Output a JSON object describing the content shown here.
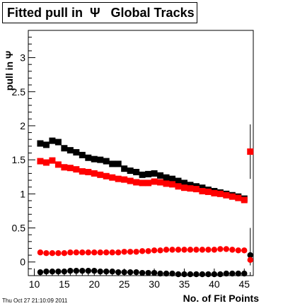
{
  "title": "Fitted pull in  Ψ   Global Tracks",
  "timestamp": "Thu Oct 27 21:10:09 2011",
  "chart_data": {
    "type": "scatter",
    "xlabel": "No. of Fit Points",
    "ylabel": "pull in Ψ",
    "xlim": [
      9,
      46.5
    ],
    "ylim": [
      -0.2,
      3.4
    ],
    "x_ticks": [
      "10",
      "15",
      "20",
      "25",
      "30",
      "35",
      "40",
      "45"
    ],
    "y_ticks": [
      "0",
      "0.5",
      "1",
      "1.5",
      "2",
      "2.5",
      "3"
    ],
    "grid": false,
    "series": [
      {
        "marker": "square",
        "color": "#000000",
        "x": [
          11,
          12,
          13,
          14,
          15,
          16,
          17,
          18,
          19,
          20,
          21,
          22,
          23,
          24,
          25,
          26,
          27,
          28,
          29,
          30,
          31,
          32,
          33,
          34,
          35,
          36,
          37,
          38,
          39,
          40,
          41,
          42,
          43,
          44,
          45
        ],
        "y": [
          1.74,
          1.72,
          1.78,
          1.76,
          1.67,
          1.64,
          1.61,
          1.57,
          1.53,
          1.51,
          1.5,
          1.48,
          1.44,
          1.44,
          1.37,
          1.34,
          1.32,
          1.28,
          1.29,
          1.3,
          1.27,
          1.24,
          1.22,
          1.19,
          1.16,
          1.13,
          1.11,
          1.09,
          1.06,
          1.04,
          1.02,
          1.0,
          0.98,
          0.96,
          0.93
        ]
      },
      {
        "marker": "square",
        "color": "#ff0000",
        "x": [
          11,
          12,
          13,
          14,
          15,
          16,
          17,
          18,
          19,
          20,
          21,
          22,
          23,
          24,
          25,
          26,
          27,
          28,
          29,
          30,
          31,
          32,
          33,
          34,
          35,
          36,
          37,
          38,
          39,
          40,
          41,
          42,
          43,
          44,
          45
        ],
        "y": [
          1.48,
          1.46,
          1.49,
          1.43,
          1.39,
          1.38,
          1.36,
          1.33,
          1.32,
          1.3,
          1.28,
          1.26,
          1.24,
          1.22,
          1.21,
          1.19,
          1.17,
          1.16,
          1.16,
          1.18,
          1.17,
          1.15,
          1.14,
          1.11,
          1.09,
          1.08,
          1.07,
          1.04,
          1.03,
          1.01,
          1.0,
          0.98,
          0.96,
          0.94,
          0.91
        ]
      },
      {
        "marker": "circle",
        "color": "#ff0000",
        "x": [
          11,
          12,
          13,
          14,
          15,
          16,
          17,
          18,
          19,
          20,
          21,
          22,
          23,
          24,
          25,
          26,
          27,
          28,
          29,
          30,
          31,
          32,
          33,
          34,
          35,
          36,
          37,
          38,
          39,
          40,
          41,
          42,
          43,
          44,
          45
        ],
        "y": [
          0.14,
          0.13,
          0.13,
          0.13,
          0.13,
          0.14,
          0.14,
          0.14,
          0.14,
          0.14,
          0.14,
          0.14,
          0.14,
          0.14,
          0.15,
          0.15,
          0.15,
          0.16,
          0.16,
          0.17,
          0.17,
          0.18,
          0.18,
          0.18,
          0.18,
          0.18,
          0.18,
          0.18,
          0.18,
          0.18,
          0.19,
          0.19,
          0.18,
          0.17,
          0.17
        ]
      },
      {
        "marker": "circle",
        "color": "#000000",
        "x": [
          11,
          12,
          13,
          14,
          15,
          16,
          17,
          18,
          19,
          20,
          21,
          22,
          23,
          24,
          25,
          26,
          27,
          28,
          29,
          30,
          31,
          32,
          33,
          34,
          35,
          36,
          37,
          38,
          39,
          40,
          41,
          42,
          43,
          44,
          45
        ],
        "y": [
          -0.15,
          -0.14,
          -0.14,
          -0.14,
          -0.14,
          -0.13,
          -0.13,
          -0.13,
          -0.13,
          -0.13,
          -0.14,
          -0.14,
          -0.14,
          -0.15,
          -0.15,
          -0.15,
          -0.15,
          -0.16,
          -0.16,
          -0.16,
          -0.17,
          -0.17,
          -0.17,
          -0.18,
          -0.18,
          -0.18,
          -0.18,
          -0.18,
          -0.18,
          -0.18,
          -0.18,
          -0.17,
          -0.17,
          -0.17,
          -0.17
        ]
      }
    ],
    "extra_points": [
      {
        "x": 46,
        "y": 1.62,
        "yerr_low": 1.22,
        "yerr_high": 2.02,
        "marker": "square",
        "color": "#ff0000"
      },
      {
        "x": 46,
        "y": 0.1,
        "yerr_low": 0.0,
        "yerr_high": 0.5,
        "marker": "circle",
        "color": "#000000"
      },
      {
        "x": 46,
        "y": 0.03,
        "yerr_low": -0.05,
        "yerr_high": 0.1,
        "marker": "circle",
        "color": "#ff0000"
      }
    ]
  }
}
